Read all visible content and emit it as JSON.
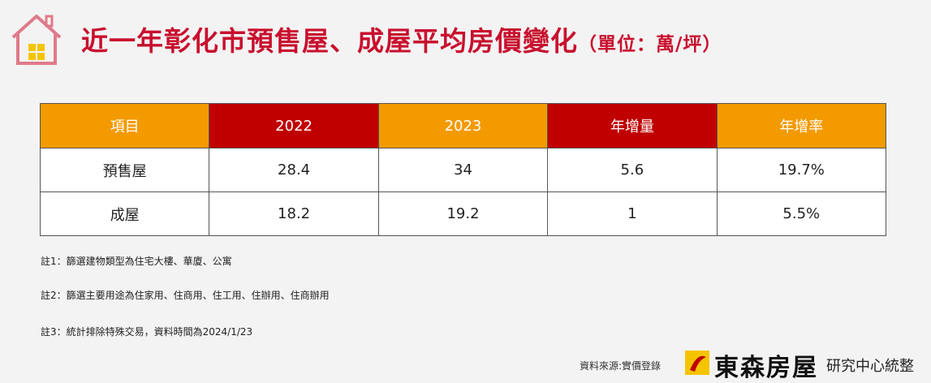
{
  "header": {
    "title": "近一年彰化市預售屋、成屋平均房價變化",
    "unit": "（單位：萬/坪）"
  },
  "table": {
    "columns": [
      "項目",
      "2022",
      "2023",
      "年增量",
      "年增率"
    ],
    "rows": [
      [
        "預售屋",
        "28.4",
        "34",
        "5.6",
        "19.7%"
      ],
      [
        "成屋",
        "18.2",
        "19.2",
        "1",
        "5.5%"
      ]
    ]
  },
  "notes": [
    "註1：篩選建物類型為住宅大樓、華廈、公寓",
    "註2：篩選主要用途為住家用、住商用、住工用、住辦用、住商辦用",
    "註3：統計排除特殊交易，資料時間為2024/1/23"
  ],
  "footer": {
    "source": "資料來源:實價登錄",
    "brand": "東森房屋",
    "dept": "研究中心統整"
  }
}
